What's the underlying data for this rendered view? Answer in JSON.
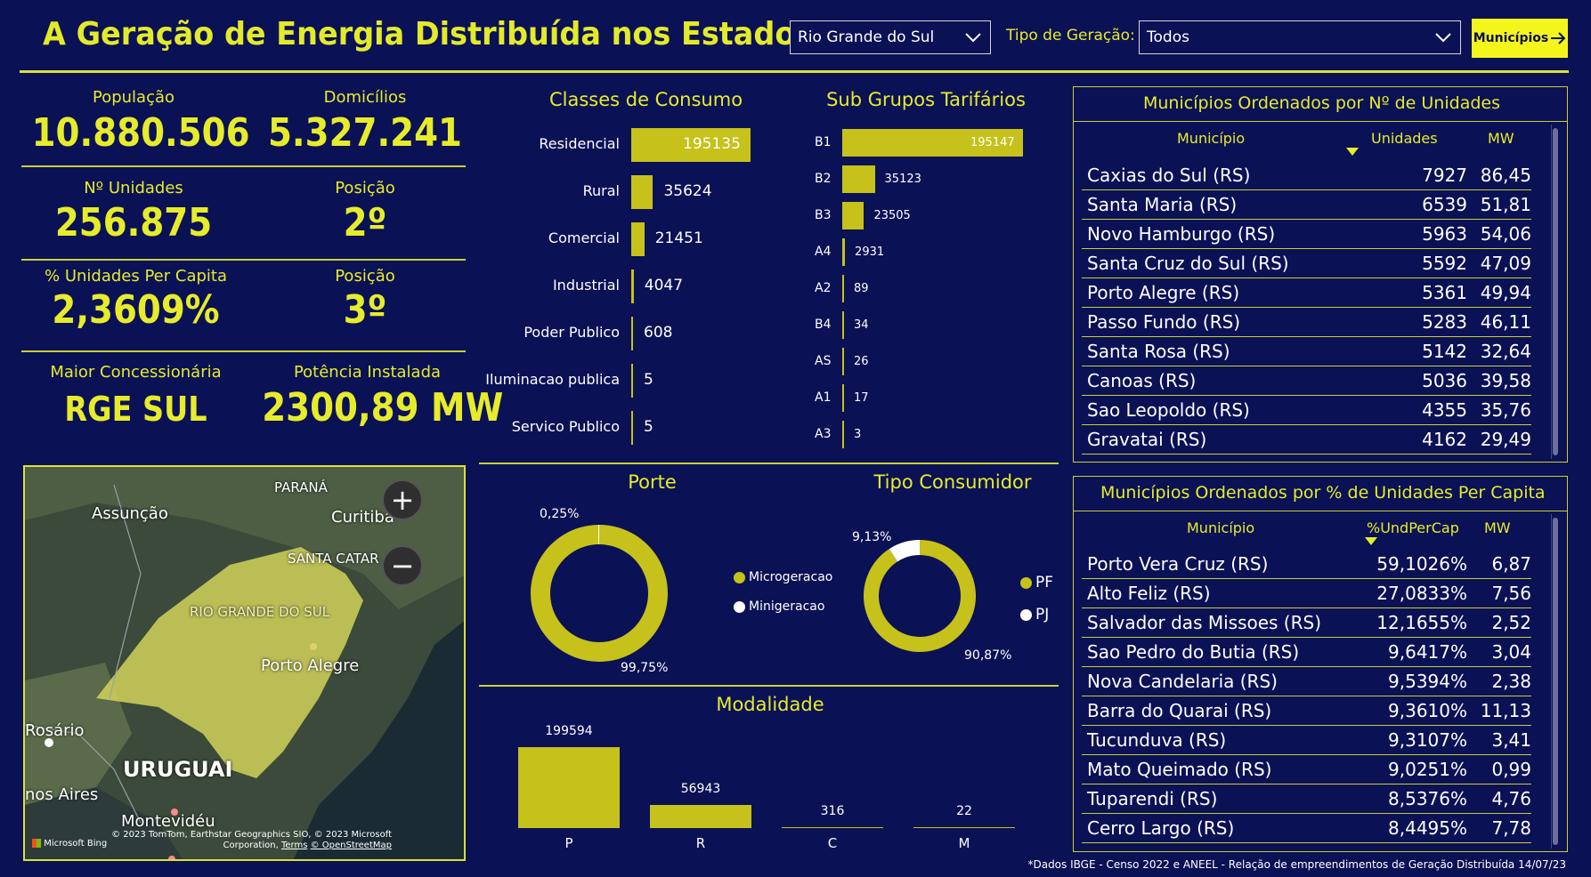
{
  "header": {
    "title": "A Geração de Energia Distribuída nos Estados",
    "state_select": "Rio Grande do Sul",
    "tipo_label": "Tipo de Geração:",
    "tipo_select": "Todos",
    "municipios_button": "Municípios",
    "colors": {
      "background": "#0b1155",
      "accent": "#e6ec2a",
      "bar": "#c6c11b",
      "button": "#f4f51b"
    }
  },
  "kpis": {
    "populacao": {
      "label": "População",
      "value": "10.880.506"
    },
    "domicilios": {
      "label": "Domicílios",
      "value": "5.327.241"
    },
    "unidades": {
      "label": "Nº Unidades",
      "value": "256.875"
    },
    "posicao1": {
      "label": "Posição",
      "value": "2º"
    },
    "per_capita": {
      "label": "% Unidades Per Capita",
      "value": "2,3609%"
    },
    "posicao2": {
      "label": "Posição",
      "value": "3º"
    },
    "concessionaria": {
      "label": "Maior Concessionária",
      "value": "RGE SUL"
    },
    "potencia": {
      "label": "Potência Instalada",
      "value": "2300,89 MW"
    }
  },
  "map": {
    "labels": {
      "parana": "PARANÁ",
      "assuncao": "Assunção",
      "curitiba": "Curitiba",
      "santa_catarina": "SANTA CATAR",
      "rs": "RIO GRANDE DO SUL",
      "porto_alegre": "Porto Alegre",
      "rosario": "Rosário",
      "uruguai": "URUGUAI",
      "buenos_aires": "nos Aires",
      "montevideu": "Montevidéu"
    },
    "zoom_in": "+",
    "zoom_out": "−",
    "attribution": "© 2023 TomTom, Earthstar Geographics SIO, © 2023 Microsoft Corporation,",
    "terms": "Terms",
    "osm": "© OpenStreetMap",
    "bing": "Microsoft Bing"
  },
  "chart_data": [
    {
      "type": "bar",
      "title": "Classes de Consumo",
      "categories": [
        "Residencial",
        "Rural",
        "Comercial",
        "Industrial",
        "Poder Publico",
        "Iluminacao publica",
        "Servico Publico"
      ],
      "values": [
        195135,
        35624,
        21451,
        4047,
        608,
        5,
        5
      ]
    },
    {
      "type": "bar",
      "title": "Sub Grupos Tarifários",
      "categories": [
        "B1",
        "B2",
        "B3",
        "A4",
        "A2",
        "B4",
        "AS",
        "A1",
        "A3"
      ],
      "values": [
        195147,
        35123,
        23505,
        2931,
        89,
        34,
        26,
        17,
        3
      ]
    },
    {
      "type": "pie",
      "title": "Porte",
      "categories": [
        "Microgeracao",
        "Minigeracao"
      ],
      "values": [
        99.75,
        0.25
      ],
      "data_labels": [
        "99,75%",
        "0,25%"
      ],
      "colors": [
        "#c6c11b",
        "#ffffff"
      ]
    },
    {
      "type": "pie",
      "title": "Tipo Consumidor",
      "categories": [
        "PF",
        "PJ"
      ],
      "values": [
        90.87,
        9.13
      ],
      "data_labels": [
        "90,87%",
        "9,13%"
      ],
      "colors": [
        "#c6c11b",
        "#ffffff"
      ]
    },
    {
      "type": "bar",
      "title": "Modalidade",
      "categories": [
        "P",
        "R",
        "C",
        "M"
      ],
      "values": [
        199594,
        56943,
        316,
        22
      ]
    }
  ],
  "table1": {
    "title": "Municípios Ordenados por Nº de Unidades",
    "headers": [
      "Município",
      "Unidades",
      "MW"
    ],
    "rows": [
      [
        "Caxias do Sul (RS)",
        "7927",
        "86,45"
      ],
      [
        "Santa Maria (RS)",
        "6539",
        "51,81"
      ],
      [
        "Novo Hamburgo (RS)",
        "5963",
        "54,06"
      ],
      [
        "Santa Cruz do Sul (RS)",
        "5592",
        "47,09"
      ],
      [
        "Porto Alegre (RS)",
        "5361",
        "49,94"
      ],
      [
        "Passo Fundo (RS)",
        "5283",
        "46,11"
      ],
      [
        "Santa Rosa (RS)",
        "5142",
        "32,64"
      ],
      [
        "Canoas (RS)",
        "5036",
        "39,58"
      ],
      [
        "Sao Leopoldo (RS)",
        "4355",
        "35,76"
      ],
      [
        "Gravatai (RS)",
        "4162",
        "29,49"
      ]
    ]
  },
  "table2": {
    "title": "Municípios Ordenados por % de Unidades Per Capita",
    "headers": [
      "Município",
      "%UndPerCap",
      "MW"
    ],
    "rows": [
      [
        "Porto Vera Cruz (RS)",
        "59,1026%",
        "6,87"
      ],
      [
        "Alto Feliz (RS)",
        "27,0833%",
        "7,56"
      ],
      [
        "Salvador das Missoes (RS)",
        "12,1655%",
        "2,52"
      ],
      [
        "Sao Pedro do Butia (RS)",
        "9,6417%",
        "3,04"
      ],
      [
        "Nova Candelaria (RS)",
        "9,5394%",
        "2,38"
      ],
      [
        "Barra do Quarai (RS)",
        "9,3610%",
        "11,13"
      ],
      [
        "Tucunduva (RS)",
        "9,3107%",
        "3,41"
      ],
      [
        "Mato Queimado (RS)",
        "9,0251%",
        "0,99"
      ],
      [
        "Tuparendi (RS)",
        "8,5376%",
        "4,76"
      ],
      [
        "Cerro Largo (RS)",
        "8,4495%",
        "7,78"
      ]
    ]
  },
  "footnote": "*Dados IBGE - Censo 2022 e ANEEL - Relação de empreendimentos de Geração Distribuída 14/07/23"
}
